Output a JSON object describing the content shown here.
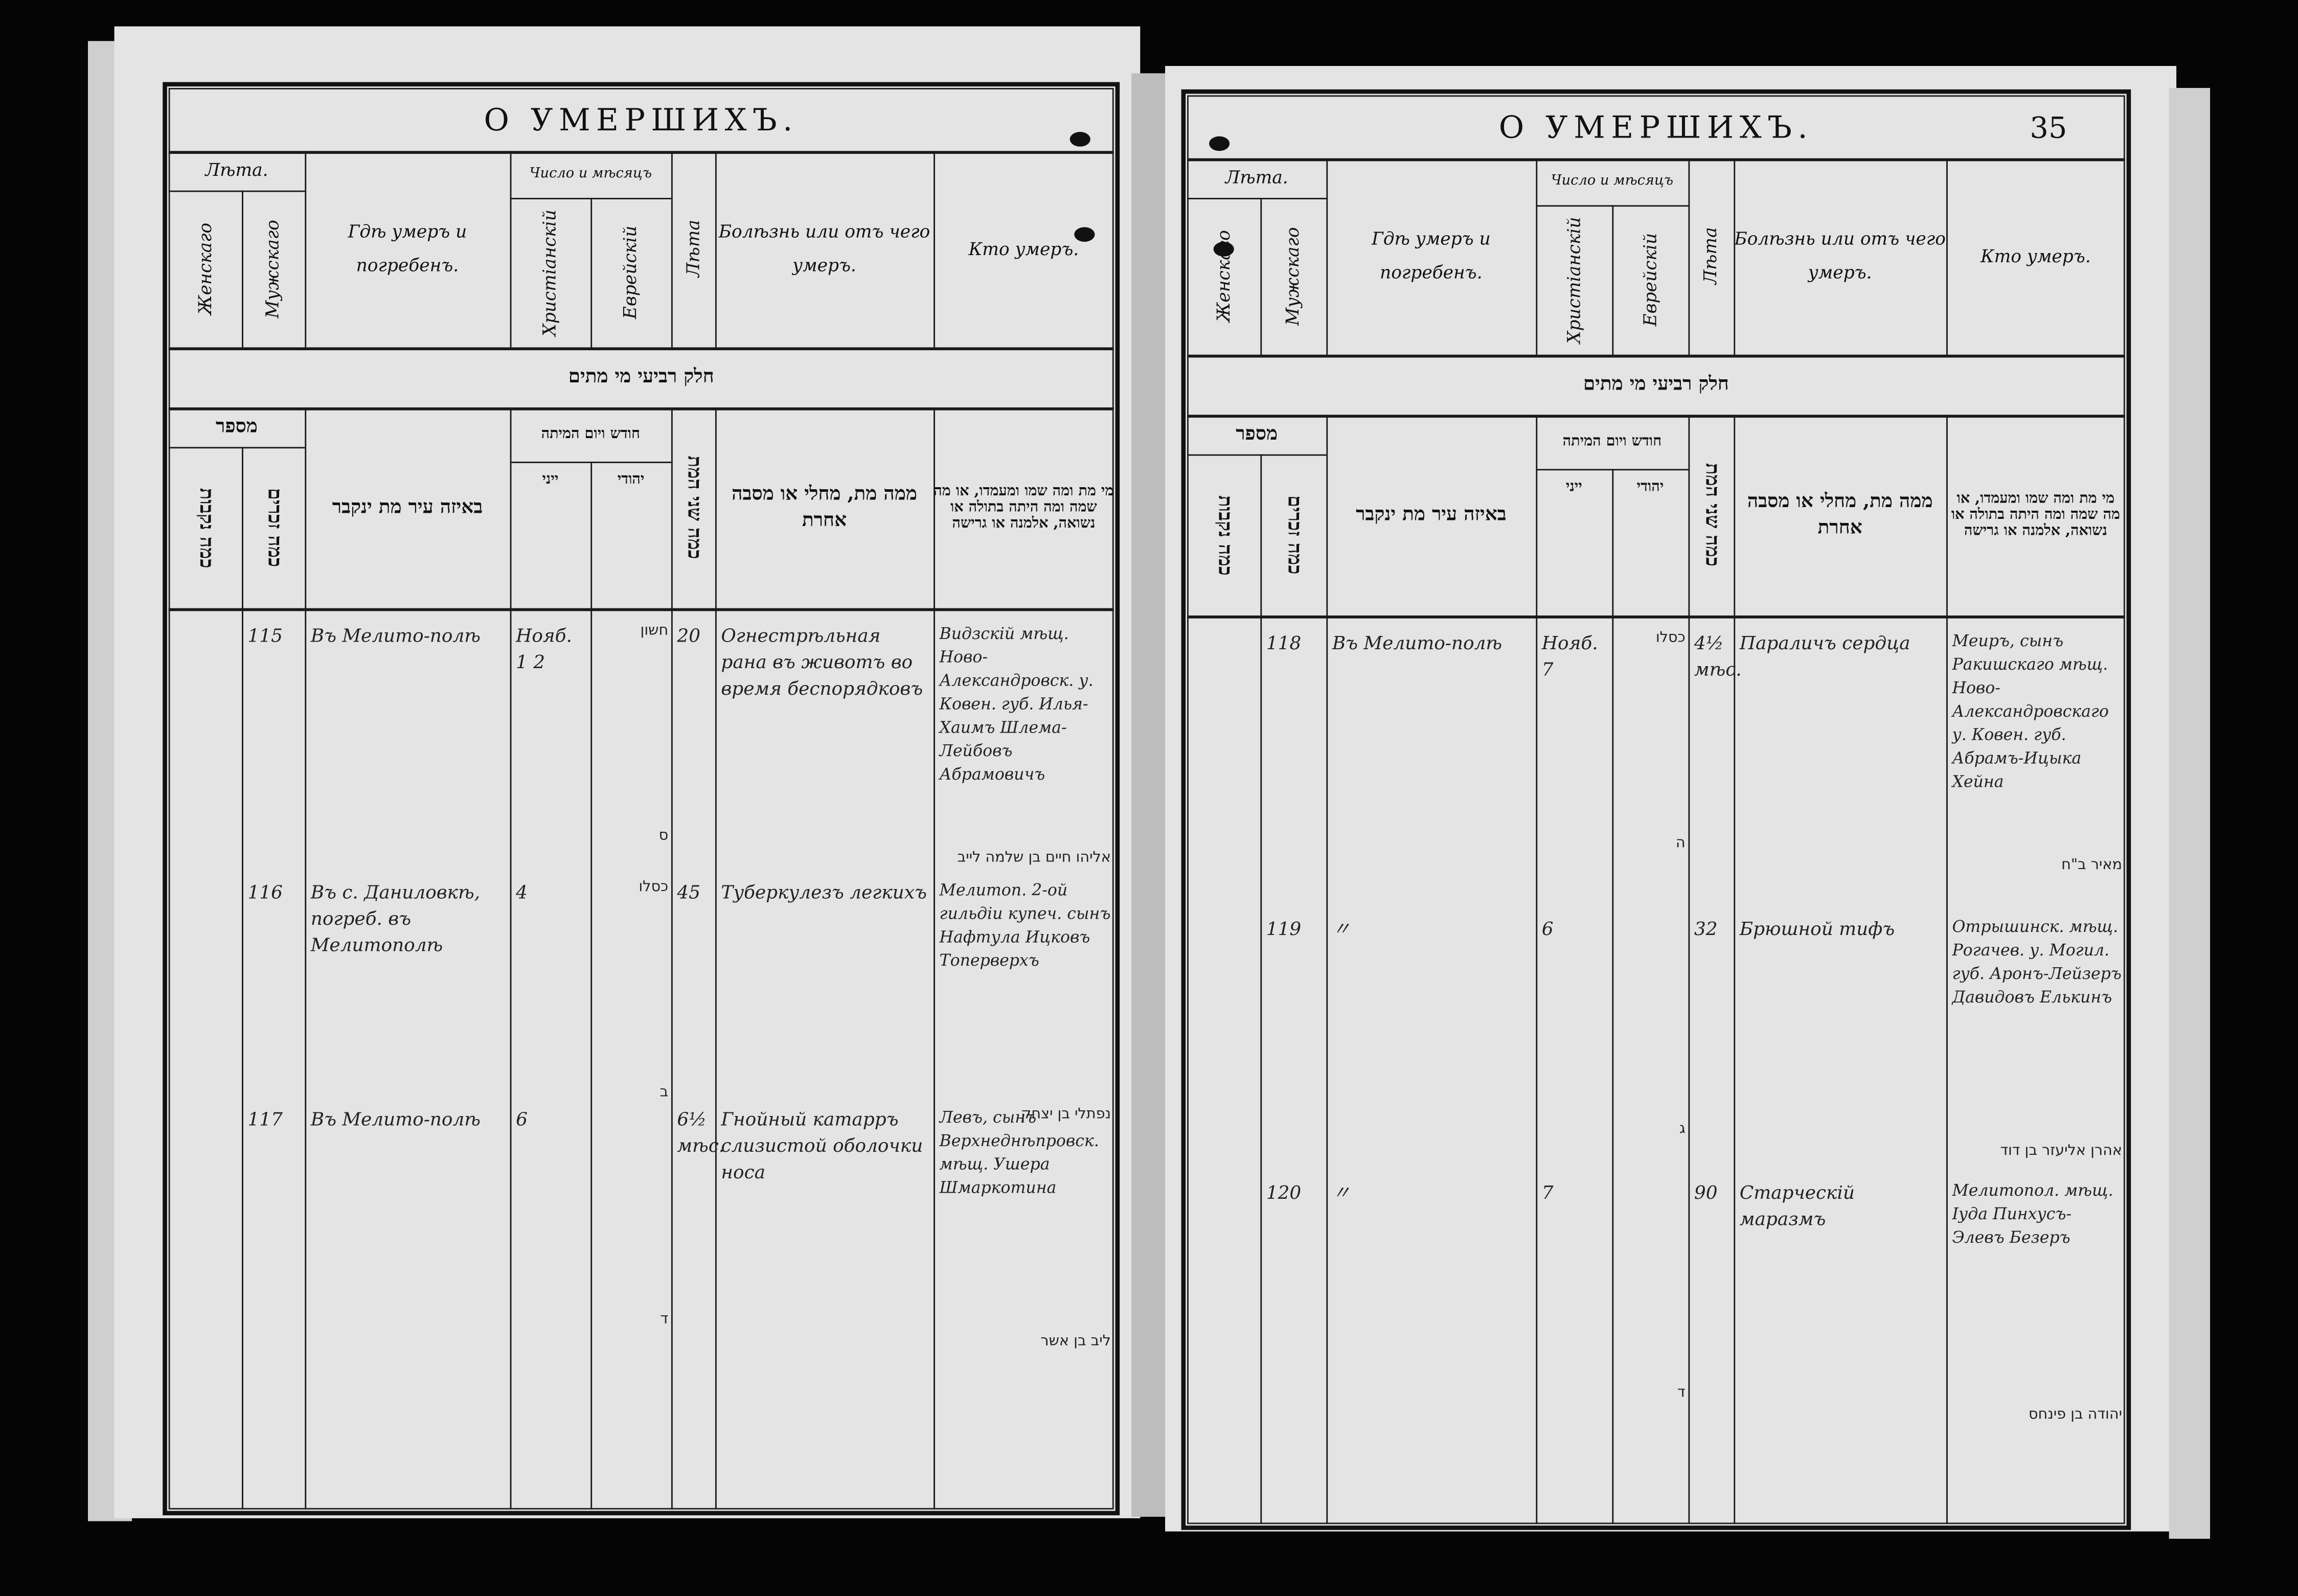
{
  "header": {
    "title": "О УМЕРШИХЪ.",
    "years_group": "Лѣта.",
    "female": "Женскаго",
    "male": "Мужскаго",
    "where_died": "Гдѣ умеръ и погребенъ.",
    "date_group": "Число и мѣсяцъ",
    "christian": "Христіанскій",
    "jewish": "Еврейскій",
    "age": "Лѣта",
    "cause": "Болѣзнь или отъ чего умеръ.",
    "who": "Кто умеръ.",
    "hebrew_band": "חלק רביעי מי מתים",
    "he_number_group": "מספר",
    "he_female": "כמה נקבות",
    "he_male": "כמה זכרים",
    "he_where": "באיזה עיר מת ינקבר",
    "he_date_group": "חודש ויום המיתה",
    "he_christian": "ייני",
    "he_jewish": "יהודי",
    "he_age": "כמה שני המת",
    "he_cause": "ממה מת, מחלי או מסבה אחרת",
    "he_who": "מי מת ומה שמו ומעמדו, או מה שמה ומה היתה בתולה או נשואה, אלמנה או גרישה"
  },
  "pages": [
    {
      "page_number": "",
      "entries": [
        {
          "number": "115",
          "place": "Въ Мелито-полѣ",
          "date": "Нояб. 1 2",
          "heb_date": "חשון",
          "heb_mark": "ס",
          "age": "20",
          "cause": "Огнестрѣльная рана въ животъ во время беспорядковъ",
          "who": "Видзскій мѣщ. Ново-Александровск. у. Ковен. губ. Илья-Хаимъ Шлема-Лейбовъ Абрамовичъ",
          "who_hebrew": "אליהו חיים בן שלמה לייב"
        },
        {
          "number": "116",
          "place": "Въ с. Даниловкѣ, погреб. въ Мелитополѣ",
          "date": "4",
          "heb_date": "כסלו",
          "heb_mark": "ב",
          "age": "45",
          "cause": "Туберкулезъ легкихъ",
          "who": "Мелитоп. 2-ой гильдіи купеч. сынъ Нафтула Ицковъ Топерверхъ",
          "who_hebrew": "נפתלי בן יצחק"
        },
        {
          "number": "117",
          "place": "Въ Мелито-полѣ",
          "date": "6",
          "heb_date": "",
          "heb_mark": "ד",
          "age": "6½ мѣс.",
          "cause": "Гнойный катарръ слизистой оболочки носа",
          "who": "Левъ, сынъ Верхнеднѣпровск. мѣщ. Ушера Шмаркотина",
          "who_hebrew": "ליב בן אשר"
        }
      ]
    },
    {
      "page_number": "35",
      "entries": [
        {
          "number": "118",
          "place": "Въ Мелито-полѣ",
          "date": "Нояб. 7",
          "heb_date": "כסלו",
          "heb_mark": "ה",
          "age": "4½ мѣс.",
          "cause": "Параличъ сердца",
          "who": "Меиръ, сынъ Ракишскаго мѣщ. Ново-Александровскаго у. Ковен. губ. Абрамъ-Ицыка Хейна",
          "who_hebrew": "מאיר ב\"ח"
        },
        {
          "number": "119",
          "place": "〃",
          "date": "6",
          "heb_date": "",
          "heb_mark": "ג",
          "age": "32",
          "cause": "Брюшной тифъ",
          "who": "Отрышинск. мѣщ. Рогачев. у. Могил. губ. Аронъ-Лейзеръ Давидовъ Елькинъ",
          "who_hebrew": "אהרן אליעזר בן דוד"
        },
        {
          "number": "120",
          "place": "〃",
          "date": "7",
          "heb_date": "",
          "heb_mark": "ד",
          "age": "90",
          "cause": "Старческій маразмъ",
          "who": "Мелитопол. мѣщ. Іуда Пинхусъ-Элевъ Безеръ",
          "who_hebrew": "יהודה בן פינחס"
        }
      ]
    }
  ],
  "colors": {
    "paper": "#e4e4e4",
    "ink_print": "#111111",
    "ink_hand": "#222222",
    "background": "#000000"
  }
}
